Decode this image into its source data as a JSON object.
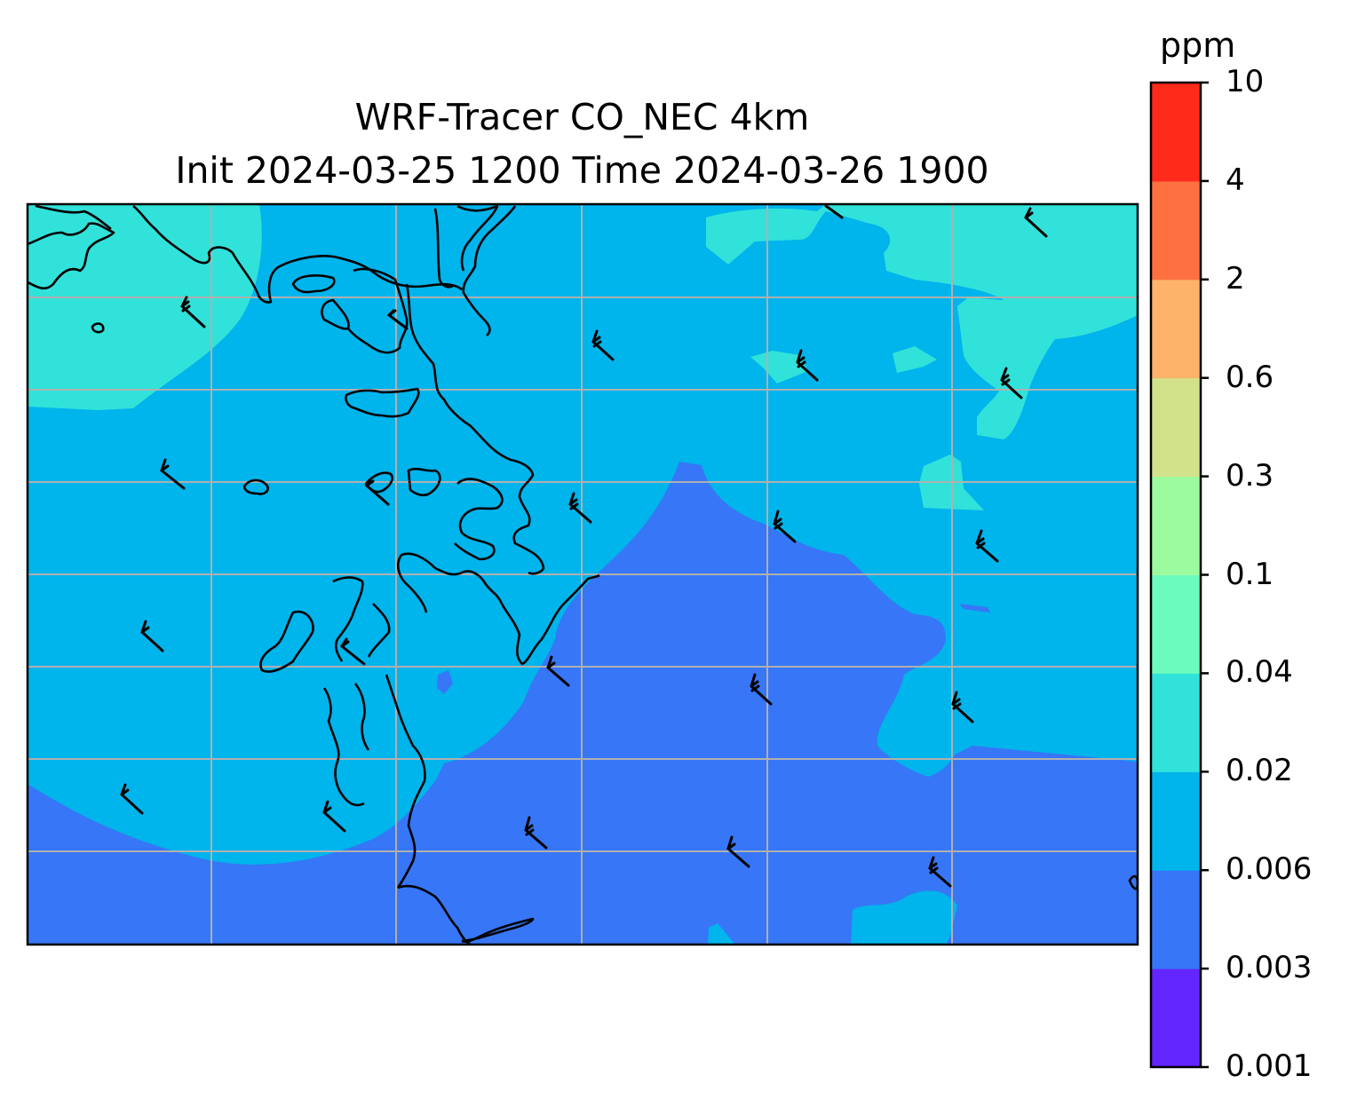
{
  "title": {
    "line1": "WRF-Tracer CO_NEC 4km",
    "line2": "Init 2024-03-25 1200 Time 2024-03-26 1900"
  },
  "colorbar": {
    "units": "ppm",
    "levels": [
      "0.001",
      "0.003",
      "0.006",
      "0.02",
      "0.04",
      "0.1",
      "0.3",
      "0.6",
      "2",
      "4",
      "10"
    ],
    "colors": [
      "#6225fb",
      "#3776f6",
      "#00b4ec",
      "#31e2da",
      "#6cfbbe",
      "#9cfb9f",
      "#d1e28a",
      "#fdb36a",
      "#fe7040",
      "#fe2a1a"
    ]
  },
  "map": {
    "background_color": "#00b4ec",
    "gridlines": true,
    "gridline_color": "#b0b0b0",
    "coastline_color": "#000000",
    "wind_barbs": true
  }
}
